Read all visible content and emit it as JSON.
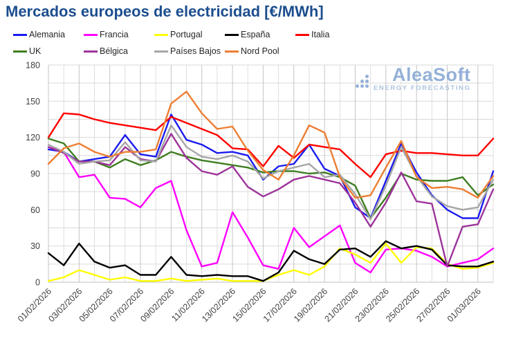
{
  "title": "Mercados europeos de electricidad [€/MWh]",
  "logo": {
    "name": "AleaSoft",
    "tagline": "ENERGY FORECASTING",
    "color": "#8fadd6"
  },
  "chart_data": {
    "type": "line",
    "title": "Mercados europeos de electricidad [€/MWh]",
    "xlabel": "",
    "ylabel": "",
    "ylim": [
      0,
      180
    ],
    "y_ticks": [
      0,
      30,
      60,
      90,
      120,
      150,
      180
    ],
    "y_minor_step": 15,
    "grid": true,
    "legend_position": "top",
    "legend_rows": [
      5,
      4
    ],
    "x": [
      "01/02/2026",
      "02/02/2026",
      "03/02/2026",
      "04/02/2026",
      "05/02/2026",
      "06/02/2026",
      "07/02/2026",
      "08/02/2026",
      "09/02/2026",
      "10/02/2026",
      "11/02/2026",
      "12/02/2026",
      "13/02/2026",
      "14/02/2026",
      "15/02/2026",
      "16/02/2026",
      "17/02/2026",
      "18/02/2026",
      "19/02/2026",
      "20/02/2026",
      "21/02/2026",
      "22/02/2026",
      "23/02/2026",
      "24/02/2026",
      "25/02/2026",
      "26/02/2026",
      "27/02/2026",
      "28/02/2026",
      "01/03/2026",
      "02/03/2026"
    ],
    "x_tick_labels": [
      "01/02/2026",
      "03/02/2026",
      "05/02/2026",
      "07/02/2026",
      "09/02/2026",
      "11/02/2026",
      "13/02/2026",
      "15/02/2026",
      "17/02/2026",
      "19/02/2026",
      "21/02/2026",
      "23/02/2026",
      "25/02/2026",
      "27/02/2026",
      "01/03/2026"
    ],
    "series": [
      {
        "name": "Alemania",
        "color": "#1a1af0",
        "values": [
          110,
          108,
          100,
          102,
          104,
          122,
          106,
          104,
          139,
          118,
          114,
          107,
          108,
          105,
          85,
          96,
          98,
          114,
          94,
          88,
          62,
          53,
          84,
          115,
          91,
          72,
          60,
          53,
          53,
          92
        ]
      },
      {
        "name": "Francia",
        "color": "#ff00ff",
        "values": [
          112,
          108,
          87,
          89,
          70,
          69,
          62,
          78,
          84,
          43,
          13,
          16,
          58,
          37,
          14,
          11,
          45,
          29,
          38,
          47,
          16,
          8,
          27,
          28,
          26,
          21,
          13,
          16,
          19,
          28
        ]
      },
      {
        "name": "Portugal",
        "color": "#ffff00",
        "values": [
          1,
          4,
          10,
          6,
          2,
          4,
          1,
          1,
          3,
          1,
          2,
          3,
          1,
          1,
          1,
          6,
          10,
          6,
          13,
          28,
          23,
          16,
          32,
          16,
          29,
          28,
          15,
          11,
          12,
          16
        ]
      },
      {
        "name": "España",
        "color": "#000000",
        "values": [
          24,
          14,
          32,
          17,
          12,
          14,
          6,
          6,
          21,
          6,
          5,
          6,
          5,
          5,
          1,
          8,
          26,
          19,
          15,
          27,
          28,
          21,
          34,
          28,
          30,
          27,
          14,
          13,
          13,
          17
        ]
      },
      {
        "name": "Italia",
        "color": "#ff0000",
        "values": [
          120,
          140,
          139,
          135,
          132,
          130,
          128,
          126,
          137,
          132,
          127,
          122,
          111,
          110,
          96,
          113,
          103,
          114,
          112,
          110,
          98,
          87,
          106,
          109,
          107,
          107,
          106,
          105,
          105,
          119
        ]
      },
      {
        "name": "UK",
        "color": "#3f7d21",
        "values": [
          119,
          115,
          100,
          100,
          95,
          102,
          97,
          101,
          108,
          104,
          101,
          99,
          97,
          95,
          91,
          92,
          92,
          90,
          91,
          87,
          80,
          53,
          70,
          90,
          85,
          84,
          84,
          87,
          72,
          81
        ]
      },
      {
        "name": "Bélgica",
        "color": "#9c3399",
        "values": [
          112,
          107,
          100,
          100,
          97,
          112,
          102,
          100,
          123,
          103,
          92,
          89,
          96,
          79,
          71,
          77,
          85,
          88,
          85,
          82,
          66,
          46,
          66,
          91,
          67,
          65,
          13,
          46,
          48,
          77
        ]
      },
      {
        "name": "Países Bajos",
        "color": "#a6a6a6",
        "values": [
          114,
          108,
          98,
          100,
          101,
          116,
          101,
          100,
          130,
          112,
          104,
          102,
          105,
          100,
          86,
          92,
          95,
          98,
          87,
          89,
          73,
          52,
          80,
          112,
          88,
          71,
          63,
          60,
          62,
          85
        ]
      },
      {
        "name": "Nord Pool",
        "color": "#ed7d31",
        "values": [
          98,
          111,
          115,
          108,
          104,
          108,
          108,
          110,
          148,
          158,
          140,
          127,
          129,
          109,
          93,
          85,
          105,
          130,
          124,
          87,
          70,
          72,
          95,
          117,
          87,
          78,
          79,
          77,
          70,
          88
        ]
      }
    ]
  }
}
